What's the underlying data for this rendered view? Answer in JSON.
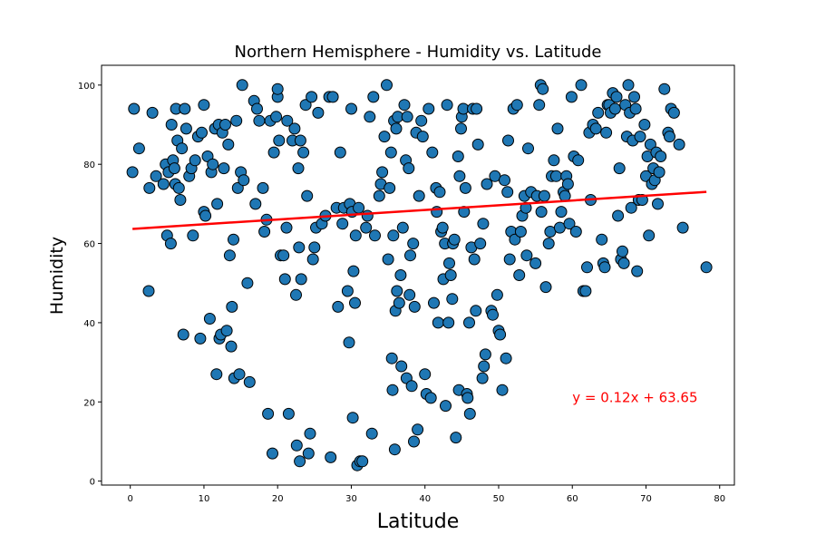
{
  "chart_data": {
    "type": "scatter",
    "title": "Northern Hemisphere - Humidity vs. Latitude",
    "xlabel": "Latitude",
    "ylabel": "Humidity",
    "xlim": [
      -3.9,
      82
    ],
    "ylim": [
      -1,
      105
    ],
    "xticks": [
      0,
      10,
      20,
      30,
      40,
      50,
      60,
      70,
      80
    ],
    "yticks": [
      0,
      20,
      40,
      60,
      80,
      100
    ],
    "grid": false,
    "point_color": "#1f77b4",
    "line_color": "#ff0000",
    "regression": {
      "slope": 0.12,
      "intercept": 63.65,
      "x_range": [
        0.3,
        78.2
      ]
    },
    "annotation": {
      "text": "y = 0.12x + 63.65",
      "x": 60,
      "y": 20
    },
    "points": [
      [
        0.3,
        78
      ],
      [
        0.5,
        94
      ],
      [
        1.2,
        84
      ],
      [
        2.5,
        48
      ],
      [
        2.6,
        74
      ],
      [
        3.0,
        93
      ],
      [
        3.5,
        77
      ],
      [
        4.5,
        75
      ],
      [
        4.8,
        80
      ],
      [
        5.0,
        62
      ],
      [
        5.2,
        78
      ],
      [
        5.5,
        60
      ],
      [
        5.6,
        90
      ],
      [
        5.8,
        81
      ],
      [
        6.0,
        79
      ],
      [
        6.1,
        75
      ],
      [
        6.2,
        94
      ],
      [
        6.4,
        86
      ],
      [
        6.6,
        74
      ],
      [
        6.8,
        71
      ],
      [
        7.0,
        84
      ],
      [
        7.2,
        37
      ],
      [
        7.4,
        94
      ],
      [
        7.6,
        89
      ],
      [
        8.0,
        77
      ],
      [
        8.3,
        79
      ],
      [
        8.5,
        62
      ],
      [
        8.8,
        81
      ],
      [
        9.2,
        87
      ],
      [
        9.5,
        36
      ],
      [
        9.7,
        88
      ],
      [
        10.0,
        95
      ],
      [
        10.0,
        68
      ],
      [
        10.2,
        67
      ],
      [
        10.5,
        82
      ],
      [
        10.8,
        41
      ],
      [
        11.0,
        78
      ],
      [
        11.2,
        80
      ],
      [
        11.5,
        89
      ],
      [
        11.7,
        27
      ],
      [
        11.8,
        70
      ],
      [
        12.0,
        90
      ],
      [
        12.1,
        36
      ],
      [
        12.3,
        37
      ],
      [
        12.5,
        88
      ],
      [
        12.7,
        79
      ],
      [
        12.9,
        90
      ],
      [
        13.1,
        38
      ],
      [
        13.3,
        85
      ],
      [
        13.5,
        57
      ],
      [
        13.7,
        34
      ],
      [
        13.8,
        44
      ],
      [
        14.0,
        61
      ],
      [
        14.1,
        26
      ],
      [
        14.4,
        91
      ],
      [
        14.6,
        74
      ],
      [
        14.8,
        27
      ],
      [
        15.0,
        78
      ],
      [
        15.2,
        100
      ],
      [
        15.4,
        76
      ],
      [
        15.9,
        50
      ],
      [
        16.2,
        25
      ],
      [
        16.8,
        96
      ],
      [
        17.0,
        70
      ],
      [
        17.2,
        94
      ],
      [
        17.5,
        91
      ],
      [
        18.0,
        74
      ],
      [
        18.2,
        63
      ],
      [
        18.5,
        66
      ],
      [
        18.7,
        17
      ],
      [
        19.0,
        91
      ],
      [
        19.3,
        7
      ],
      [
        19.5,
        83
      ],
      [
        19.8,
        92
      ],
      [
        20.0,
        97
      ],
      [
        20.0,
        99
      ],
      [
        20.2,
        86
      ],
      [
        20.4,
        57
      ],
      [
        20.8,
        57
      ],
      [
        21.0,
        51
      ],
      [
        21.2,
        64
      ],
      [
        21.3,
        91
      ],
      [
        21.5,
        17
      ],
      [
        22.0,
        86
      ],
      [
        22.3,
        89
      ],
      [
        22.5,
        47
      ],
      [
        22.6,
        9
      ],
      [
        22.8,
        79
      ],
      [
        22.9,
        59
      ],
      [
        23.0,
        5
      ],
      [
        23.1,
        86
      ],
      [
        23.2,
        51
      ],
      [
        23.5,
        83
      ],
      [
        23.8,
        95
      ],
      [
        24.0,
        72
      ],
      [
        24.2,
        7
      ],
      [
        24.4,
        12
      ],
      [
        24.6,
        97
      ],
      [
        24.8,
        56
      ],
      [
        25.0,
        59
      ],
      [
        25.2,
        64
      ],
      [
        25.5,
        93
      ],
      [
        26.0,
        65
      ],
      [
        26.5,
        67
      ],
      [
        27.0,
        97
      ],
      [
        27.2,
        6
      ],
      [
        27.5,
        97
      ],
      [
        28.0,
        69
      ],
      [
        28.2,
        44
      ],
      [
        28.5,
        83
      ],
      [
        28.8,
        65
      ],
      [
        29.0,
        69
      ],
      [
        29.5,
        48
      ],
      [
        29.7,
        35
      ],
      [
        29.8,
        70
      ],
      [
        30.0,
        94
      ],
      [
        30.1,
        68
      ],
      [
        30.2,
        16
      ],
      [
        30.3,
        53
      ],
      [
        30.5,
        45
      ],
      [
        30.6,
        62
      ],
      [
        30.8,
        4
      ],
      [
        31.0,
        69
      ],
      [
        31.2,
        5
      ],
      [
        31.5,
        5
      ],
      [
        32.0,
        64
      ],
      [
        32.2,
        67
      ],
      [
        32.5,
        92
      ],
      [
        32.8,
        12
      ],
      [
        33.0,
        97
      ],
      [
        33.2,
        62
      ],
      [
        33.8,
        72
      ],
      [
        34.0,
        75
      ],
      [
        34.2,
        78
      ],
      [
        34.5,
        87
      ],
      [
        34.8,
        100
      ],
      [
        35.0,
        56
      ],
      [
        35.2,
        74
      ],
      [
        35.4,
        83
      ],
      [
        35.5,
        31
      ],
      [
        35.6,
        23
      ],
      [
        35.7,
        62
      ],
      [
        35.8,
        91
      ],
      [
        35.9,
        8
      ],
      [
        36.0,
        43
      ],
      [
        36.1,
        89
      ],
      [
        36.2,
        48
      ],
      [
        36.3,
        92
      ],
      [
        36.5,
        45
      ],
      [
        36.7,
        52
      ],
      [
        36.8,
        29
      ],
      [
        37.0,
        64
      ],
      [
        37.2,
        95
      ],
      [
        37.4,
        81
      ],
      [
        37.5,
        26
      ],
      [
        37.6,
        92
      ],
      [
        37.8,
        79
      ],
      [
        37.9,
        47
      ],
      [
        38.0,
        57
      ],
      [
        38.2,
        24
      ],
      [
        38.4,
        60
      ],
      [
        38.5,
        10
      ],
      [
        38.6,
        44
      ],
      [
        38.8,
        88
      ],
      [
        39.0,
        13
      ],
      [
        39.2,
        72
      ],
      [
        39.5,
        91
      ],
      [
        39.7,
        87
      ],
      [
        40.0,
        27
      ],
      [
        40.2,
        22
      ],
      [
        40.5,
        94
      ],
      [
        40.8,
        21
      ],
      [
        41.0,
        83
      ],
      [
        41.2,
        45
      ],
      [
        41.5,
        74
      ],
      [
        41.6,
        68
      ],
      [
        41.8,
        40
      ],
      [
        42.0,
        73
      ],
      [
        42.2,
        63
      ],
      [
        42.4,
        64
      ],
      [
        42.5,
        51
      ],
      [
        42.7,
        60
      ],
      [
        42.8,
        19
      ],
      [
        43.0,
        95
      ],
      [
        43.2,
        40
      ],
      [
        43.3,
        55
      ],
      [
        43.5,
        52
      ],
      [
        43.7,
        46
      ],
      [
        43.8,
        60
      ],
      [
        44.0,
        61
      ],
      [
        44.2,
        11
      ],
      [
        44.5,
        82
      ],
      [
        44.6,
        23
      ],
      [
        44.7,
        77
      ],
      [
        44.9,
        89
      ],
      [
        45.0,
        92
      ],
      [
        45.2,
        94
      ],
      [
        45.3,
        68
      ],
      [
        45.5,
        74
      ],
      [
        45.7,
        22
      ],
      [
        45.8,
        21
      ],
      [
        46.0,
        40
      ],
      [
        46.1,
        17
      ],
      [
        46.3,
        59
      ],
      [
        46.5,
        94
      ],
      [
        46.7,
        56
      ],
      [
        46.9,
        43
      ],
      [
        47.0,
        94
      ],
      [
        47.2,
        85
      ],
      [
        47.5,
        60
      ],
      [
        47.8,
        26
      ],
      [
        47.9,
        65
      ],
      [
        48.0,
        29
      ],
      [
        48.2,
        32
      ],
      [
        48.4,
        75
      ],
      [
        49.0,
        43
      ],
      [
        49.2,
        42
      ],
      [
        49.5,
        77
      ],
      [
        49.8,
        47
      ],
      [
        50.0,
        38
      ],
      [
        50.2,
        37
      ],
      [
        50.5,
        23
      ],
      [
        50.8,
        76
      ],
      [
        51.0,
        31
      ],
      [
        51.2,
        73
      ],
      [
        51.3,
        86
      ],
      [
        51.5,
        56
      ],
      [
        51.7,
        63
      ],
      [
        52.0,
        94
      ],
      [
        52.2,
        61
      ],
      [
        52.5,
        95
      ],
      [
        52.8,
        52
      ],
      [
        53.0,
        63
      ],
      [
        53.2,
        67
      ],
      [
        53.5,
        72
      ],
      [
        53.7,
        69
      ],
      [
        53.8,
        57
      ],
      [
        54.0,
        84
      ],
      [
        54.4,
        73
      ],
      [
        55.0,
        55
      ],
      [
        55.2,
        72
      ],
      [
        55.5,
        95
      ],
      [
        55.7,
        100
      ],
      [
        55.8,
        68
      ],
      [
        56.0,
        99
      ],
      [
        56.2,
        72
      ],
      [
        56.4,
        49
      ],
      [
        56.8,
        60
      ],
      [
        57.0,
        63
      ],
      [
        57.2,
        77
      ],
      [
        57.5,
        81
      ],
      [
        57.8,
        77
      ],
      [
        58.0,
        89
      ],
      [
        58.3,
        64
      ],
      [
        58.5,
        68
      ],
      [
        58.8,
        73
      ],
      [
        59.0,
        72
      ],
      [
        59.2,
        77
      ],
      [
        59.4,
        75
      ],
      [
        59.6,
        65
      ],
      [
        59.9,
        97
      ],
      [
        60.2,
        82
      ],
      [
        60.5,
        63
      ],
      [
        60.8,
        81
      ],
      [
        61.2,
        100
      ],
      [
        61.5,
        48
      ],
      [
        61.8,
        48
      ],
      [
        62.0,
        54
      ],
      [
        62.3,
        88
      ],
      [
        62.5,
        71
      ],
      [
        62.8,
        90
      ],
      [
        63.2,
        89
      ],
      [
        63.5,
        93
      ],
      [
        64.0,
        61
      ],
      [
        64.2,
        55
      ],
      [
        64.4,
        54
      ],
      [
        64.6,
        88
      ],
      [
        64.8,
        95
      ],
      [
        65.0,
        95
      ],
      [
        65.2,
        93
      ],
      [
        65.5,
        98
      ],
      [
        65.8,
        94
      ],
      [
        66.0,
        97
      ],
      [
        66.2,
        67
      ],
      [
        66.4,
        79
      ],
      [
        66.6,
        56
      ],
      [
        66.8,
        58
      ],
      [
        67.0,
        55
      ],
      [
        67.2,
        95
      ],
      [
        67.4,
        87
      ],
      [
        67.6,
        100
      ],
      [
        67.8,
        93
      ],
      [
        68.0,
        69
      ],
      [
        68.2,
        86
      ],
      [
        68.4,
        97
      ],
      [
        68.6,
        94
      ],
      [
        68.8,
        53
      ],
      [
        69.0,
        71
      ],
      [
        69.2,
        87
      ],
      [
        69.5,
        71
      ],
      [
        69.8,
        90
      ],
      [
        70.0,
        77
      ],
      [
        70.2,
        82
      ],
      [
        70.4,
        62
      ],
      [
        70.6,
        85
      ],
      [
        70.8,
        75
      ],
      [
        71.0,
        79
      ],
      [
        71.2,
        76
      ],
      [
        71.4,
        83
      ],
      [
        71.6,
        70
      ],
      [
        71.8,
        78
      ],
      [
        72.0,
        82
      ],
      [
        72.5,
        99
      ],
      [
        73.0,
        88
      ],
      [
        73.2,
        87
      ],
      [
        73.4,
        94
      ],
      [
        73.8,
        93
      ],
      [
        74.5,
        85
      ],
      [
        75.0,
        64
      ],
      [
        78.2,
        54
      ]
    ]
  }
}
